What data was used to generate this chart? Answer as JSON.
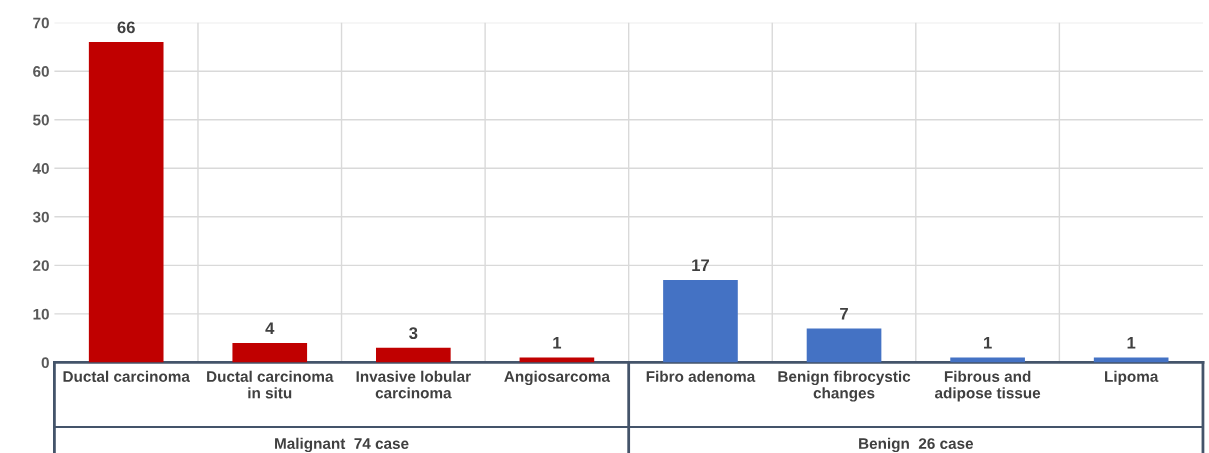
{
  "chart_data": {
    "type": "bar",
    "categories": [
      "Ductal carcinoma",
      "Ductal carcinoma\nin situ",
      "Invasive lobular\ncarcinoma",
      "Angiosarcoma",
      "Fibro adenoma",
      "Benign fibrocystic\nchanges",
      "Fibrous and\nadipose tissue",
      "Lipoma"
    ],
    "values": [
      66,
      4,
      3,
      1,
      17,
      7,
      1,
      1
    ],
    "colors": [
      "#c00000",
      "#c00000",
      "#c00000",
      "#c00000",
      "#4472c4",
      "#4472c4",
      "#4472c4",
      "#4472c4"
    ],
    "ylim": [
      0,
      70
    ],
    "yticks": [
      0,
      10,
      20,
      30,
      40,
      50,
      60,
      70
    ],
    "grid": true,
    "data_labels": true,
    "annotations": [
      "Malignant  74 case",
      "Benign  26 case"
    ]
  }
}
